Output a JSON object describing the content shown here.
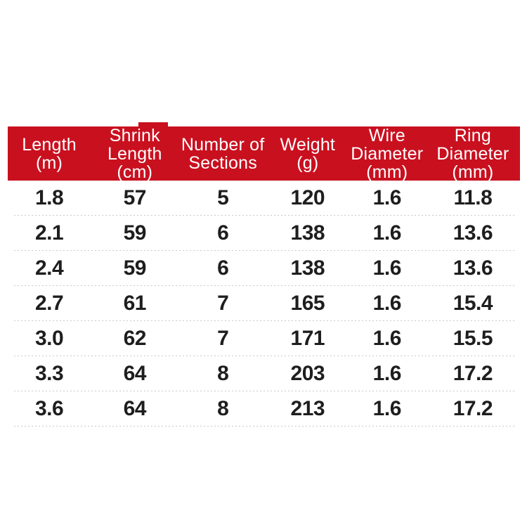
{
  "colors": {
    "header_bg": "#c9101f",
    "header_text": "#ffffff",
    "cell_text": "#1e1e1e",
    "separator": "#c9c9c9",
    "page_bg": "#ffffff"
  },
  "table": {
    "header": [
      {
        "label": "Length (m)",
        "lines": [
          "Length",
          "(m)"
        ]
      },
      {
        "label": "Shrink Length (cm)",
        "lines": [
          "Shrink",
          "Length",
          "(cm)"
        ]
      },
      {
        "label": "Number of Sections",
        "lines": [
          "Number of",
          "Sections"
        ]
      },
      {
        "label": "Weight (g)",
        "lines": [
          "Weight",
          "(g)"
        ]
      },
      {
        "label": "Wire Diameter (mm)",
        "lines": [
          "Wire",
          "Diameter",
          "(mm)"
        ]
      },
      {
        "label": "Ring Diameter (mm)",
        "lines": [
          "Ring",
          "Diameter",
          "(mm)"
        ]
      }
    ],
    "rows": [
      [
        "1.8",
        "57",
        "5",
        "120",
        "1.6",
        "11.8"
      ],
      [
        "2.1",
        "59",
        "6",
        "138",
        "1.6",
        "13.6"
      ],
      [
        "2.4",
        "59",
        "6",
        "138",
        "1.6",
        "13.6"
      ],
      [
        "2.7",
        "61",
        "7",
        "165",
        "1.6",
        "15.4"
      ],
      [
        "3.0",
        "62",
        "7",
        "171",
        "1.6",
        "15.5"
      ],
      [
        "3.3",
        "64",
        "8",
        "203",
        "1.6",
        "17.2"
      ],
      [
        "3.6",
        "64",
        "8",
        "213",
        "1.6",
        "17.2"
      ]
    ]
  },
  "chart_data": {
    "type": "table",
    "title": "",
    "columns": [
      "Length (m)",
      "Shrink Length (cm)",
      "Number of Sections",
      "Weight (g)",
      "Wire Diameter (mm)",
      "Ring Diameter (mm)"
    ],
    "rows": [
      [
        1.8,
        57,
        5,
        120,
        1.6,
        11.8
      ],
      [
        2.1,
        59,
        6,
        138,
        1.6,
        13.6
      ],
      [
        2.4,
        59,
        6,
        138,
        1.6,
        13.6
      ],
      [
        2.7,
        61,
        7,
        165,
        1.6,
        15.4
      ],
      [
        3.0,
        62,
        7,
        171,
        1.6,
        15.5
      ],
      [
        3.3,
        64,
        8,
        203,
        1.6,
        17.2
      ],
      [
        3.6,
        64,
        8,
        213,
        1.6,
        17.2
      ]
    ],
    "layout": {
      "header_style": "red-band",
      "row_separators": "dotted",
      "grid": false
    }
  }
}
